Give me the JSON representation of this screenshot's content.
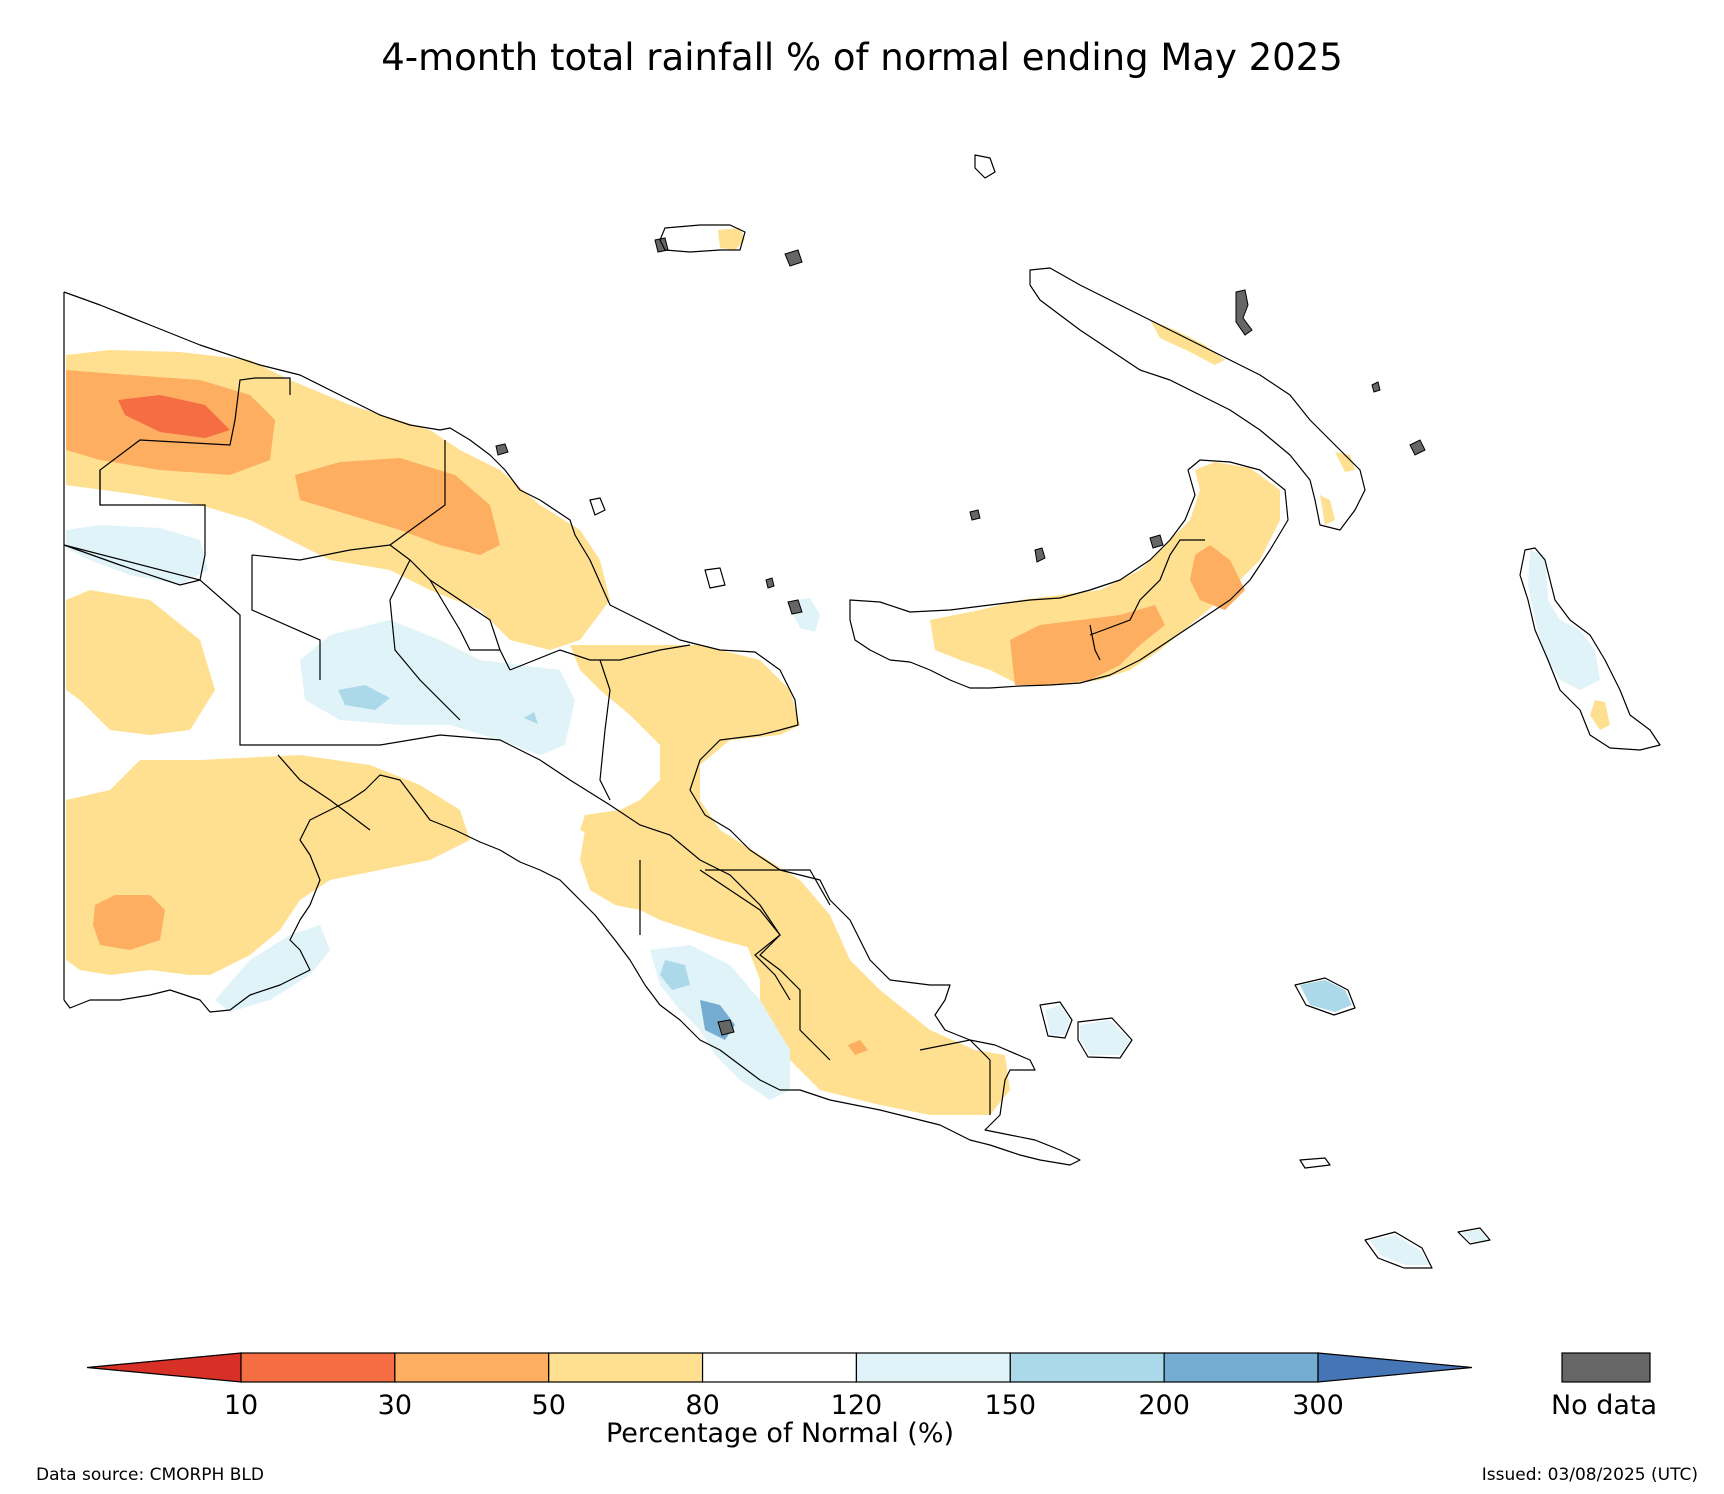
{
  "title": "4-month total rainfall % of normal ending May 2025",
  "colorbar": {
    "label": "Percentage of Normal (%)",
    "ticks": [
      "10",
      "30",
      "50",
      "80",
      "120",
      "150",
      "200",
      "300"
    ],
    "bins": [
      {
        "range": "<10",
        "color": "#d73027"
      },
      {
        "range": "10-30",
        "color": "#f46d43"
      },
      {
        "range": "30-50",
        "color": "#fdae61"
      },
      {
        "range": "50-80",
        "color": "#fee090"
      },
      {
        "range": "80-120",
        "color": "#ffffff"
      },
      {
        "range": "120-150",
        "color": "#e0f3f8"
      },
      {
        "range": "150-200",
        "color": "#abd9e9"
      },
      {
        "range": "200-300",
        "color": "#74add1"
      },
      {
        "range": ">300",
        "color": "#4575b4"
      }
    ],
    "extend": "both"
  },
  "no_data": {
    "label": "No data",
    "color": "#666666"
  },
  "footer": {
    "source": "Data source: CMORPH BLD",
    "issued": "Issued: 03/08/2025 (UTC)"
  }
}
